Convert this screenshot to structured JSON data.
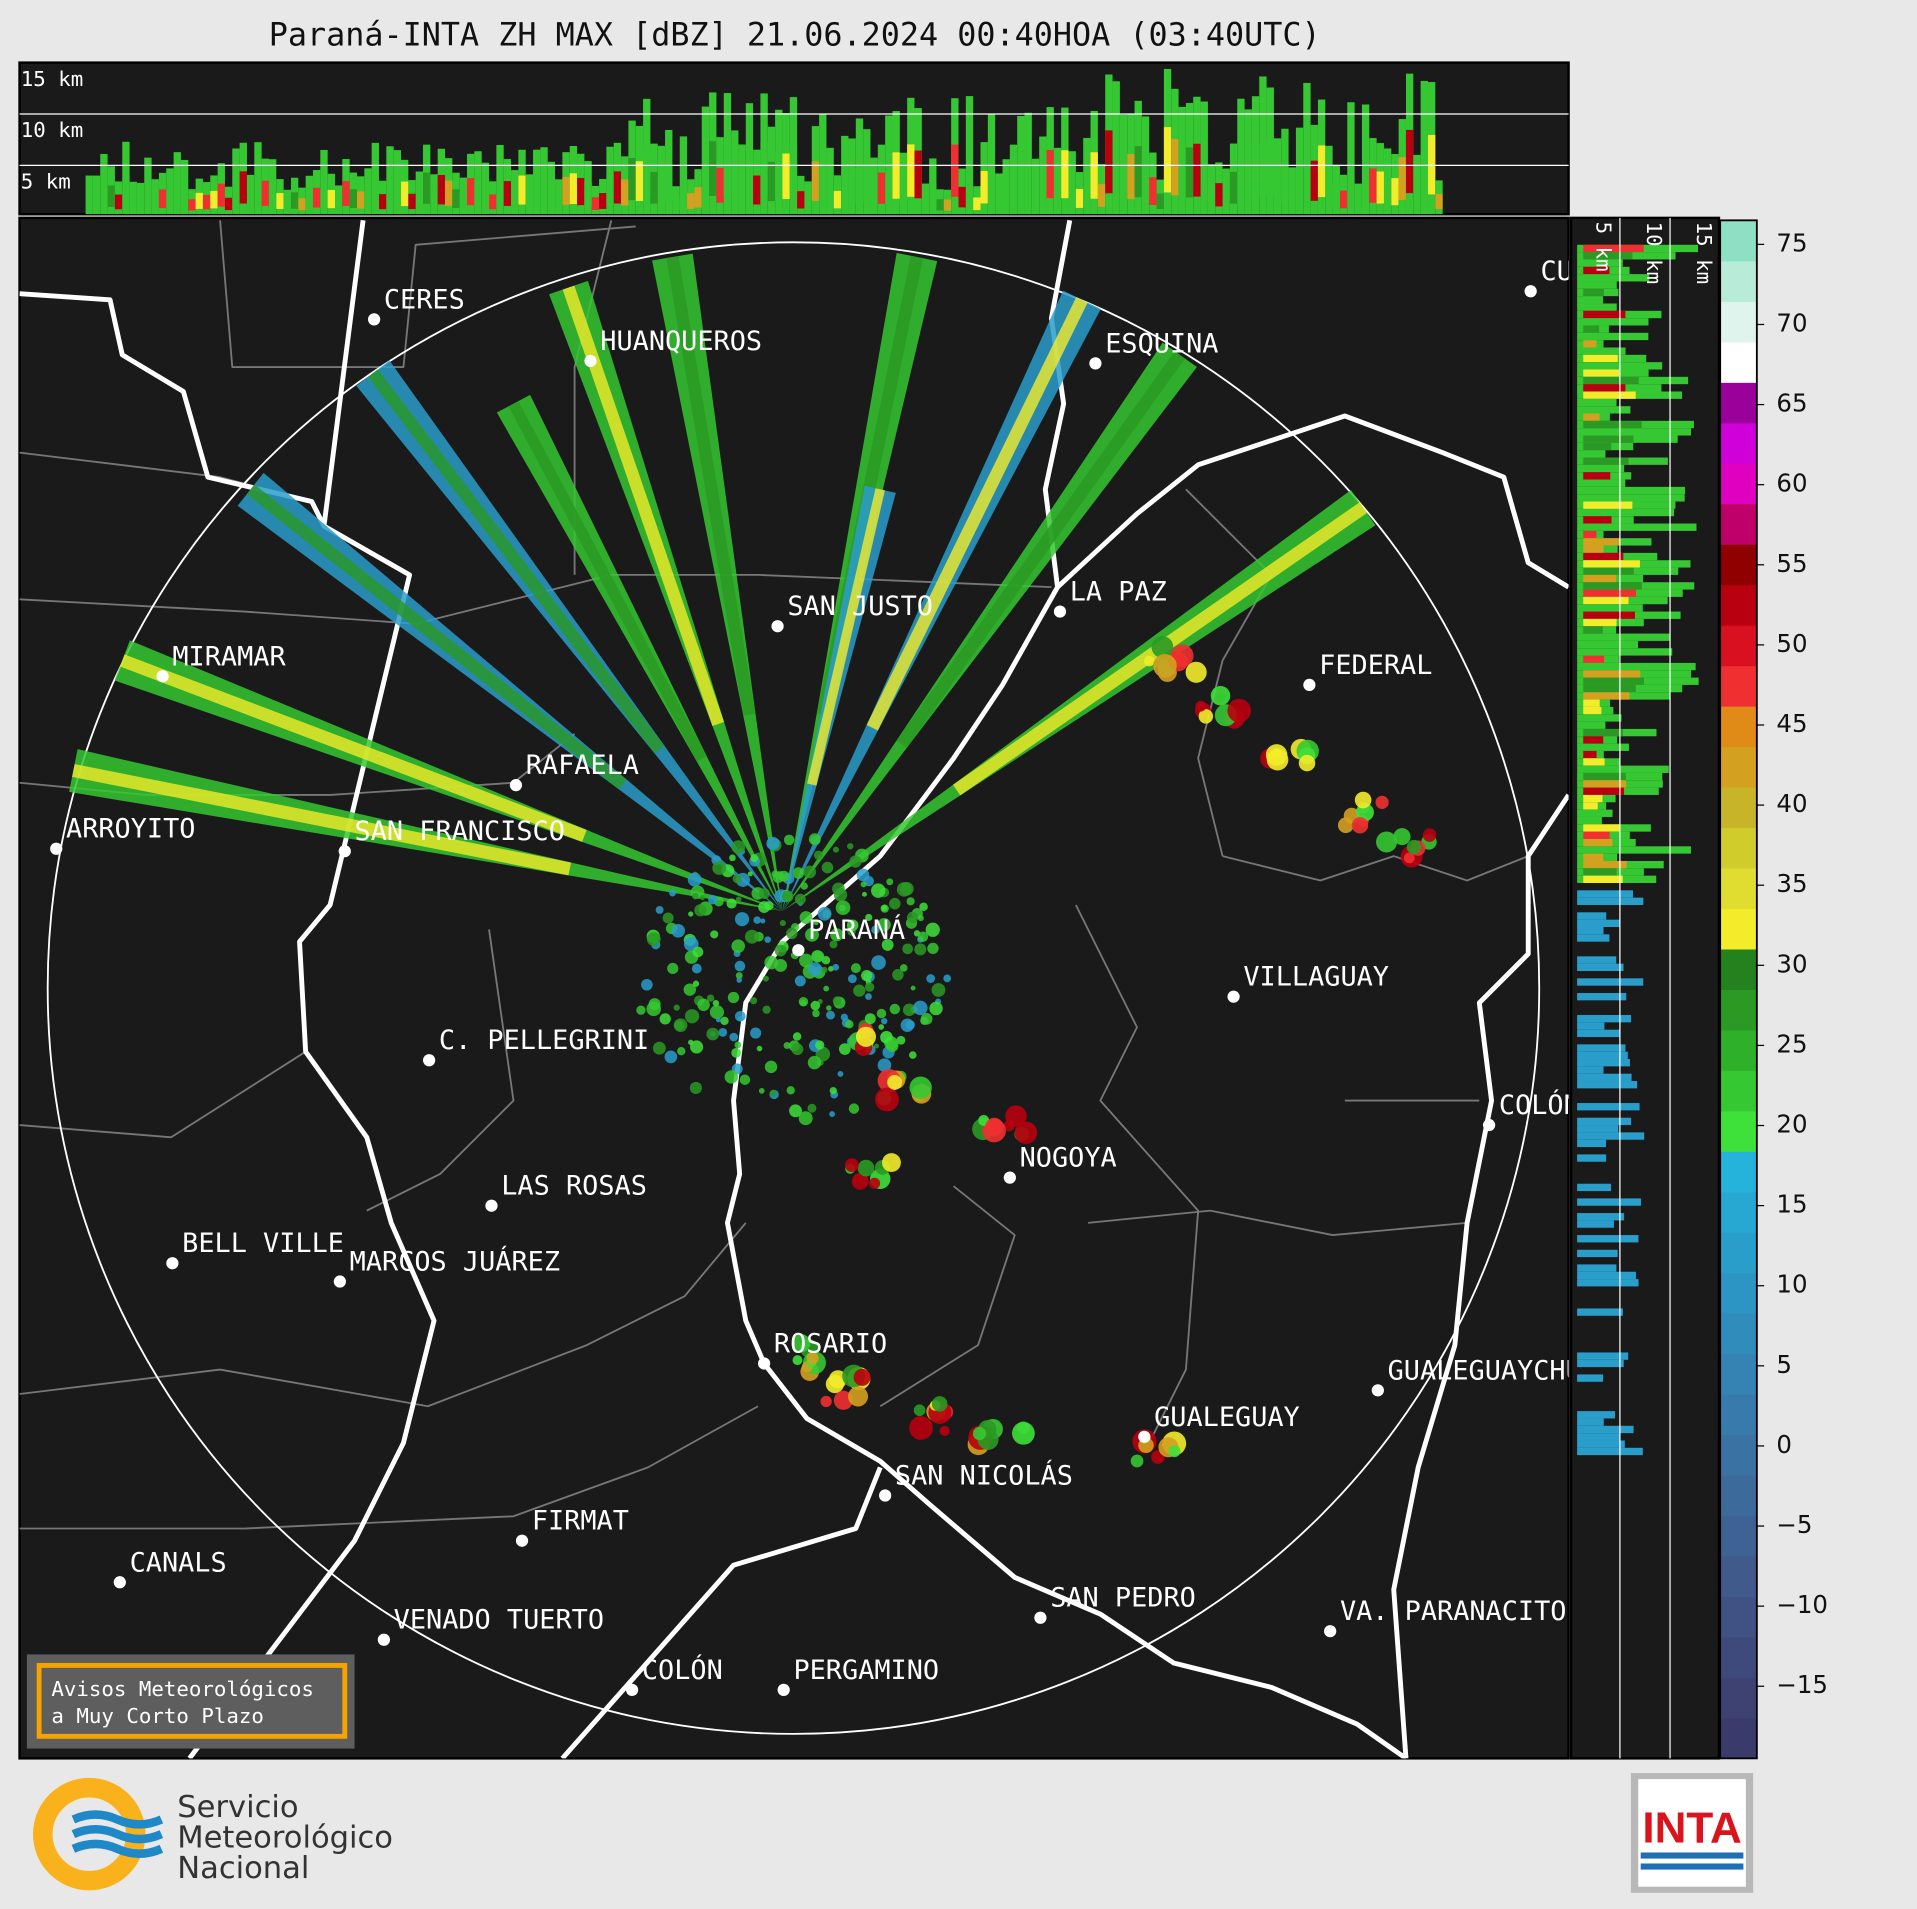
{
  "title": "Paraná-INTA ZH MAX [dBZ] 21.06.2024 00:40HOA (03:40UTC)",
  "height_labels": [
    "15 km",
    "10 km",
    "5 km"
  ],
  "side_height_labels": [
    "5 km",
    "10 km",
    "15 km"
  ],
  "cities": [
    "CERES",
    "HUANQUEROS",
    "ESQUINA",
    "SAN JUSTO",
    "LA PAZ",
    "MIRAMAR",
    "FEDERAL",
    "RAFAELA",
    "ARROYITO",
    "SAN FRANCISCO",
    "PARANÁ",
    "VILLAGUAY",
    "C. PELLEGRINI",
    "COLÓN",
    "NOGOYA",
    "LAS ROSAS",
    "BELL VILLE",
    "MARCOS JUÁREZ",
    "ROSARIO",
    "GUALEGUAYCHÚ",
    "GUALEGUAY",
    "SAN NICOLÁS",
    "FIRMAT",
    "CANALS",
    "SAN PEDRO",
    "VA. PARANACITO",
    "VENADO TUERTO",
    "COLÓN",
    "PERGAMINO",
    "CURUZÚ CUATIÁ"
  ],
  "colorbar": {
    "lim": [
      -19.5,
      76.5
    ],
    "ticks": [
      75,
      70,
      65,
      60,
      55,
      50,
      45,
      40,
      35,
      30,
      25,
      20,
      15,
      10,
      5,
      0,
      {
        "value": -5,
        "label": "−5"
      },
      {
        "value": -10,
        "label": "−10"
      },
      {
        "value": -15,
        "label": "−15"
      }
    ],
    "colors": [
      "#3b3b6b",
      "#3d4273",
      "#3e4a7b",
      "#3f5283",
      "#3f5a8b",
      "#3e6293",
      "#3c6a9b",
      "#3a72a3",
      "#377aab",
      "#3483b3",
      "#308cbb",
      "#2c95c3",
      "#2a9ecb",
      "#27a8d3",
      "#25b3db",
      "#3ee03a",
      "#36c832",
      "#2fb02a",
      "#2a9a24",
      "#24821e",
      "#f2ec2a",
      "#e0dc30",
      "#d0cc2c",
      "#c8b428",
      "#d4a020",
      "#e08a18",
      "#f03030",
      "#d81020",
      "#b80010",
      "#900000",
      "#c0006a",
      "#e000c0",
      "#d000d8",
      "#9a009a",
      "#ffffff",
      "#dff4ec",
      "#b8ecd8",
      "#8ee0c4"
    ]
  },
  "warning_box": {
    "lines": [
      "Avisos Meteorológicos",
      "a Muy Corto Plazo"
    ]
  },
  "footer": {
    "smn": [
      "Servicio",
      "Meteorológico",
      "Nacional"
    ],
    "inta": "INTA"
  }
}
